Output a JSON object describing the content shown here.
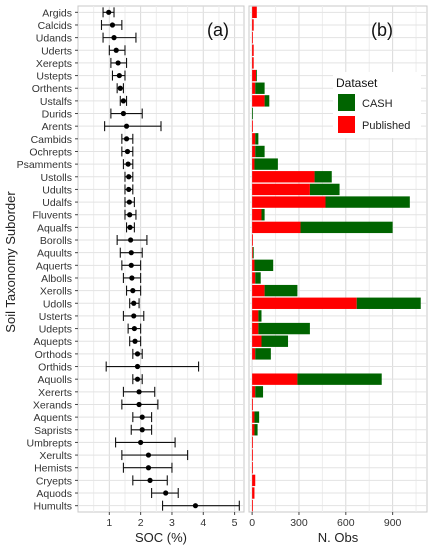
{
  "figure": {
    "ylabel": "Soil Taxonomy Suborder",
    "panel_a_label": "(a)",
    "panel_b_label": "(b)"
  },
  "chart_data": [
    {
      "type": "scatter",
      "panel": "(a)",
      "xlabel": "SOC (%)",
      "ylabel": "Soil Taxonomy Suborder",
      "xlim": [
        0,
        5.3
      ],
      "xticks": [
        1,
        2,
        3,
        4,
        5
      ],
      "grid": true,
      "categories": [
        "Argids",
        "Calcids",
        "Udands",
        "Uderts",
        "Xerepts",
        "Ustepts",
        "Orthents",
        "Ustalfs",
        "Durids",
        "Arents",
        "Cambids",
        "Ochrepts",
        "Psamments",
        "Ustolls",
        "Udults",
        "Udalfs",
        "Fluvents",
        "Aqualfs",
        "Borolls",
        "Aquults",
        "Aquerts",
        "Albolls",
        "Xerolls",
        "Udolls",
        "Usterts",
        "Udepts",
        "Aquepts",
        "Orthods",
        "Orthids",
        "Aquolls",
        "Xererts",
        "Xerands",
        "Aquents",
        "Saprists",
        "Umbrepts",
        "Xerults",
        "Hemists",
        "Cryepts",
        "Aquods",
        "Humults"
      ],
      "mean": [
        0.98,
        1.1,
        1.15,
        1.22,
        1.28,
        1.32,
        1.35,
        1.45,
        1.45,
        1.55,
        1.55,
        1.58,
        1.6,
        1.62,
        1.62,
        1.64,
        1.65,
        1.66,
        1.68,
        1.7,
        1.7,
        1.72,
        1.75,
        1.78,
        1.78,
        1.8,
        1.82,
        1.9,
        1.9,
        1.9,
        1.95,
        1.95,
        2.05,
        2.05,
        2.0,
        2.25,
        2.25,
        2.3,
        2.8,
        3.75
      ],
      "lower": [
        0.8,
        0.75,
        0.8,
        1.0,
        1.05,
        1.1,
        1.25,
        1.35,
        1.05,
        0.85,
        1.4,
        1.4,
        1.45,
        1.5,
        1.5,
        1.5,
        1.5,
        1.55,
        1.25,
        1.35,
        1.4,
        1.45,
        1.55,
        1.65,
        1.45,
        1.6,
        1.65,
        1.75,
        0.9,
        1.75,
        1.45,
        1.4,
        1.75,
        1.7,
        1.2,
        1.4,
        1.45,
        1.75,
        2.35,
        2.7
      ],
      "upper": [
        1.15,
        1.4,
        1.85,
        1.5,
        1.55,
        1.5,
        1.45,
        1.55,
        2.05,
        2.65,
        1.75,
        1.75,
        1.75,
        1.75,
        1.75,
        1.8,
        1.85,
        1.8,
        2.2,
        2.05,
        2.0,
        2.0,
        2.0,
        1.95,
        2.1,
        2.0,
        2.0,
        2.05,
        3.85,
        2.05,
        2.45,
        2.55,
        2.35,
        2.35,
        3.1,
        3.5,
        3.0,
        2.85,
        3.2,
        5.15
      ]
    },
    {
      "type": "bar",
      "panel": "(b)",
      "xlabel": "N. Obs",
      "xlim": [
        -20,
        1120
      ],
      "xticks": [
        0,
        300,
        600,
        900
      ],
      "grid": true,
      "legend": {
        "title": "Dataset",
        "placement": "top-right"
      },
      "categories": [
        "Argids",
        "Calcids",
        "Udands",
        "Uderts",
        "Xerepts",
        "Ustepts",
        "Orthents",
        "Ustalfs",
        "Durids",
        "Arents",
        "Cambids",
        "Ochrepts",
        "Psamments",
        "Ustolls",
        "Udults",
        "Udalfs",
        "Fluvents",
        "Aqualfs",
        "Borolls",
        "Aquults",
        "Aquerts",
        "Albolls",
        "Xerolls",
        "Udolls",
        "Usterts",
        "Udepts",
        "Aquepts",
        "Orthods",
        "Orthids",
        "Aquolls",
        "Xererts",
        "Xerands",
        "Aquents",
        "Saprists",
        "Umbrepts",
        "Xerults",
        "Hemists",
        "Cryepts",
        "Aquods",
        "Humults"
      ],
      "series": [
        {
          "name": "Published",
          "color": "#ff0000",
          "values": [
            30,
            10,
            5,
            10,
            10,
            25,
            20,
            80,
            0,
            5,
            20,
            20,
            15,
            400,
            370,
            470,
            60,
            310,
            5,
            5,
            15,
            20,
            80,
            670,
            40,
            40,
            60,
            20,
            0,
            290,
            20,
            5,
            15,
            15,
            5,
            5,
            5,
            20,
            15,
            5
          ]
        },
        {
          "name": "CASH",
          "color": "#006400",
          "values": [
            0,
            0,
            0,
            0,
            0,
            5,
            60,
            30,
            5,
            0,
            20,
            60,
            150,
            110,
            190,
            540,
            20,
            590,
            0,
            5,
            120,
            35,
            210,
            410,
            20,
            330,
            170,
            100,
            0,
            540,
            50,
            0,
            30,
            20,
            0,
            0,
            0,
            0,
            0,
            0
          ]
        }
      ]
    }
  ]
}
